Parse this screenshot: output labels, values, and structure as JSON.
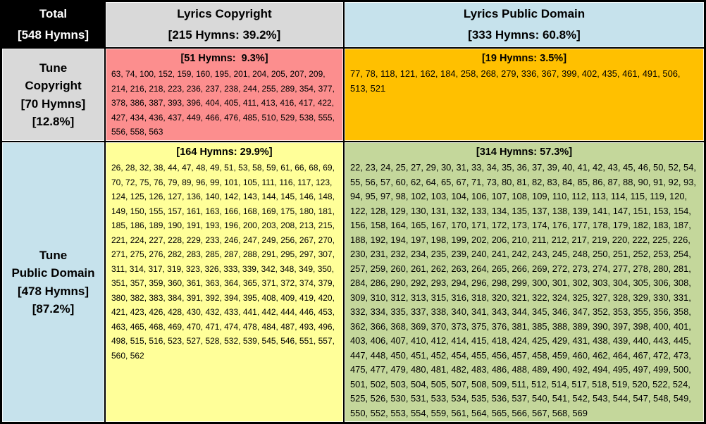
{
  "table": {
    "header_row": {
      "total": [
        "Total",
        "[548 Hymns]"
      ],
      "lyrics_copyright": [
        "Lyrics Copyright",
        "[215 Hymns: 39.2%]"
      ],
      "lyrics_public_domain": [
        "Lyrics Public Domain",
        "[333 Hymns: 60.8%]"
      ]
    },
    "row_labels": {
      "tune_copyright": [
        "Tune",
        "Copyright",
        "[70 Hymns]",
        "[12.8%]"
      ],
      "tune_public_domain": [
        "Tune",
        "Public Domain",
        "[478 Hymns]",
        "[87.2%]"
      ]
    },
    "cells": {
      "tune_copyright_lyrics_copyright": {
        "label": "[51 Hymns:  9.3%]",
        "hymns": [
          63,
          74,
          100,
          152,
          159,
          160,
          195,
          201,
          204,
          205,
          207,
          209,
          214,
          216,
          218,
          223,
          236,
          237,
          238,
          244,
          255,
          289,
          354,
          377,
          378,
          386,
          387,
          393,
          396,
          404,
          405,
          411,
          413,
          416,
          417,
          422,
          427,
          434,
          436,
          437,
          449,
          466,
          476,
          485,
          510,
          529,
          538,
          555,
          556,
          558,
          563
        ]
      },
      "tune_copyright_lyrics_public_domain": {
        "label": "[19 Hymns: 3.5%]",
        "hymns": [
          77,
          78,
          118,
          121,
          162,
          184,
          258,
          268,
          279,
          336,
          367,
          399,
          402,
          435,
          461,
          491,
          506,
          513,
          521
        ]
      },
      "tune_public_domain_lyrics_copyright": {
        "label": "[164 Hymns: 29.9%]",
        "hymns": [
          26,
          28,
          32,
          38,
          44,
          47,
          48,
          49,
          51,
          53,
          58,
          59,
          61,
          66,
          68,
          69,
          70,
          72,
          75,
          76,
          79,
          89,
          96,
          99,
          101,
          105,
          111,
          116,
          117,
          123,
          124,
          125,
          126,
          127,
          136,
          140,
          142,
          143,
          144,
          145,
          146,
          148,
          149,
          150,
          155,
          157,
          161,
          163,
          166,
          168,
          169,
          175,
          180,
          181,
          185,
          186,
          189,
          190,
          191,
          193,
          196,
          200,
          203,
          208,
          213,
          215,
          221,
          224,
          227,
          228,
          229,
          233,
          246,
          247,
          249,
          256,
          267,
          270,
          271,
          275,
          276,
          282,
          283,
          285,
          287,
          288,
          291,
          295,
          297,
          307,
          311,
          314,
          317,
          319,
          323,
          326,
          333,
          339,
          342,
          348,
          349,
          350,
          351,
          357,
          359,
          360,
          361,
          363,
          364,
          365,
          371,
          372,
          374,
          379,
          380,
          382,
          383,
          384,
          391,
          392,
          394,
          395,
          408,
          409,
          419,
          420,
          421,
          423,
          426,
          428,
          430,
          432,
          433,
          441,
          442,
          444,
          446,
          453,
          463,
          465,
          468,
          469,
          470,
          471,
          474,
          478,
          484,
          487,
          493,
          496,
          498,
          515,
          516,
          523,
          527,
          528,
          532,
          539,
          545,
          546,
          551,
          557,
          560,
          562
        ]
      },
      "tune_public_domain_lyrics_public_domain": {
        "label": "[314 Hymns: 57.3%]",
        "hymns": [
          22,
          23,
          24,
          25,
          27,
          29,
          30,
          31,
          33,
          34,
          35,
          36,
          37,
          39,
          40,
          41,
          42,
          43,
          45,
          46,
          50,
          52,
          54,
          55,
          56,
          57,
          60,
          62,
          64,
          65,
          67,
          71,
          73,
          80,
          81,
          82,
          83,
          84,
          85,
          86,
          87,
          88,
          90,
          91,
          92,
          93,
          94,
          95,
          97,
          98,
          102,
          103,
          104,
          106,
          107,
          108,
          109,
          110,
          112,
          113,
          114,
          115,
          119,
          120,
          122,
          128,
          129,
          130,
          131,
          132,
          133,
          134,
          135,
          137,
          138,
          139,
          141,
          147,
          151,
          153,
          154,
          156,
          158,
          164,
          165,
          167,
          170,
          171,
          172,
          173,
          174,
          176,
          177,
          178,
          179,
          182,
          183,
          187,
          188,
          192,
          194,
          197,
          198,
          199,
          202,
          206,
          210,
          211,
          212,
          217,
          219,
          220,
          222,
          225,
          226,
          230,
          231,
          232,
          234,
          235,
          239,
          240,
          241,
          242,
          243,
          245,
          248,
          250,
          251,
          252,
          253,
          254,
          257,
          259,
          260,
          261,
          262,
          263,
          264,
          265,
          266,
          269,
          272,
          273,
          274,
          277,
          278,
          280,
          281,
          284,
          286,
          290,
          292,
          293,
          294,
          296,
          298,
          299,
          300,
          301,
          302,
          303,
          304,
          305,
          306,
          308,
          309,
          310,
          312,
          313,
          315,
          316,
          318,
          320,
          321,
          322,
          324,
          325,
          327,
          328,
          329,
          330,
          331,
          332,
          334,
          335,
          337,
          338,
          340,
          341,
          343,
          344,
          345,
          346,
          347,
          352,
          353,
          355,
          356,
          358,
          362,
          366,
          368,
          369,
          370,
          373,
          375,
          376,
          381,
          385,
          388,
          389,
          390,
          397,
          398,
          400,
          401,
          403,
          406,
          407,
          410,
          412,
          414,
          415,
          418,
          424,
          425,
          429,
          431,
          438,
          439,
          440,
          443,
          445,
          447,
          448,
          450,
          451,
          452,
          454,
          455,
          456,
          457,
          458,
          459,
          460,
          462,
          464,
          467,
          472,
          473,
          475,
          477,
          479,
          480,
          481,
          482,
          483,
          486,
          488,
          489,
          490,
          492,
          494,
          495,
          497,
          499,
          500,
          501,
          502,
          503,
          504,
          505,
          507,
          508,
          509,
          511,
          512,
          514,
          517,
          518,
          519,
          520,
          522,
          524,
          525,
          526,
          530,
          531,
          533,
          534,
          535,
          536,
          537,
          540,
          541,
          542,
          543,
          544,
          547,
          548,
          549,
          550,
          552,
          553,
          554,
          559,
          561,
          564,
          565,
          566,
          567,
          568,
          569
        ]
      }
    },
    "colors": {
      "total_cell": "#000000",
      "copyright_header_cell": "#D9D9D9",
      "public_domain_header_cell": "#C6E2EC",
      "both_copyright_cell": "#FC8E8E",
      "tune_copyright_lyrics_pd_cell": "#FFC000",
      "tune_pd_lyrics_copyright_cell": "#FFFF99",
      "both_public_domain_cell": "#C4D79B",
      "border": "#000000"
    }
  }
}
